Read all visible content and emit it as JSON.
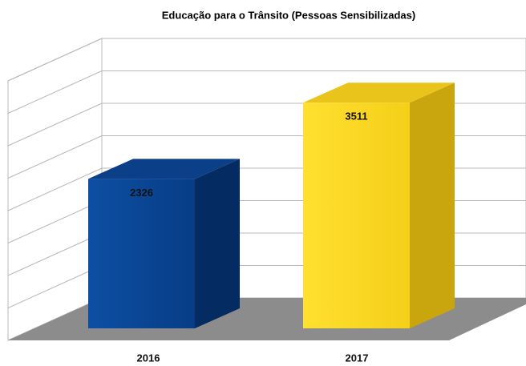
{
  "chart_data": {
    "type": "bar3d",
    "title": "Educação para o Trânsito (Pessoas Sensibilizadas)",
    "categories": [
      "2016",
      "2017"
    ],
    "values": [
      2326,
      3511
    ],
    "colors": [
      "#0a4a9a",
      "#fdd822"
    ],
    "ylim": [
      0,
      4000
    ],
    "yticks": [
      0,
      500,
      1000,
      1500,
      2000,
      2500,
      3000,
      3500,
      4000
    ],
    "grid": true
  }
}
